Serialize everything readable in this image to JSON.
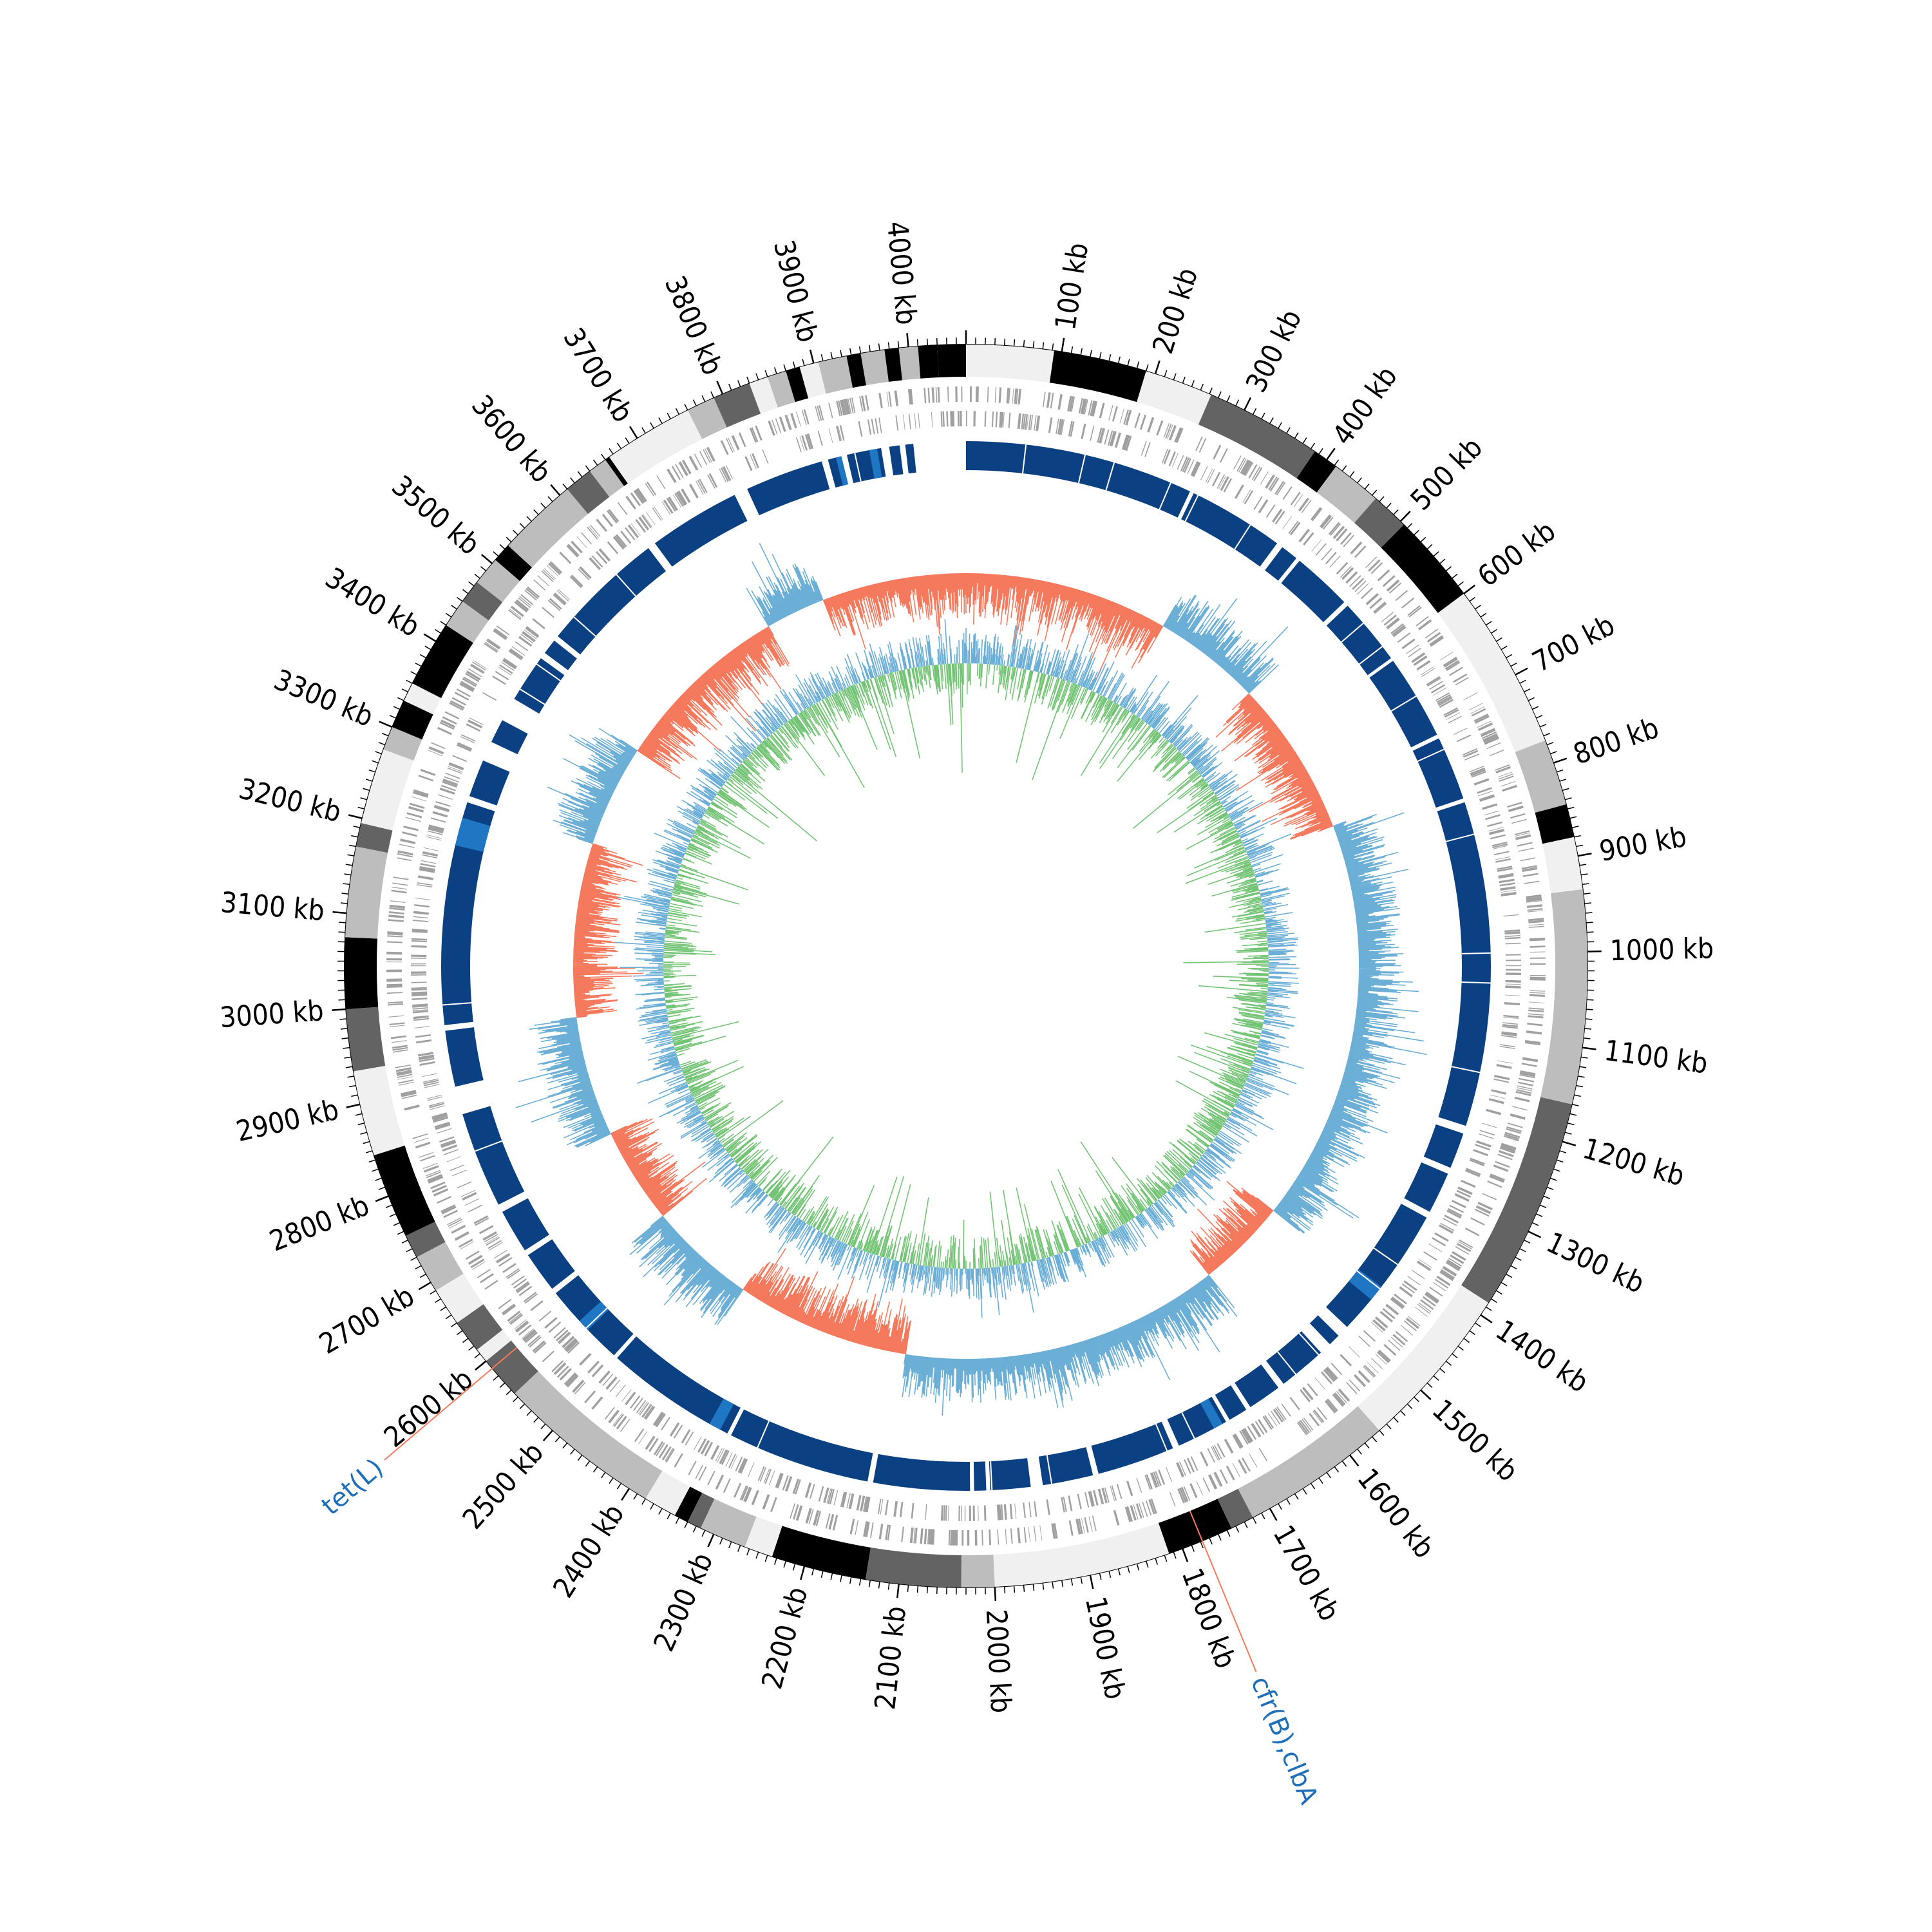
{
  "genome": {
    "total_kb": 4060,
    "major_tick_kb": 100,
    "minor_tick_kb": 10,
    "tick_unit": "kb",
    "tick_labels": [
      "100 kb",
      "200 kb",
      "300 kb",
      "400 kb",
      "500 kb",
      "600 kb",
      "700 kb",
      "800 kb",
      "900 kb",
      "1000 kb",
      "1100 kb",
      "1200 kb",
      "1300 kb",
      "1400 kb",
      "1500 kb",
      "1600 kb",
      "1700 kb",
      "1800 kb",
      "1900 kb",
      "2000 kb",
      "2100 kb",
      "2200 kb",
      "2300 kb",
      "2400 kb",
      "2500 kb",
      "2600 kb",
      "2700 kb",
      "2800 kb",
      "2900 kb",
      "3000 kb",
      "3100 kb",
      "3200 kb",
      "3300 kb",
      "3400 kb",
      "3500 kb",
      "3600 kb",
      "3700 kb",
      "3800 kb",
      "3900 kb",
      "4000 kb"
    ]
  },
  "colors": {
    "contig_shades": [
      "#f0f0f0",
      "#bdbdbd",
      "#636363",
      "#000000"
    ],
    "cds": "#a0a0a0",
    "homology_block": "#0b4182",
    "homology_highlight": "#1f77c4",
    "gc_content_up": "#6baed6",
    "gc_content_down": "#f4795d",
    "gc_skew_up": "#6baed6",
    "gc_skew_down": "#74c476",
    "label_line": "#f4795d",
    "gene_label": "#1f6fb8"
  },
  "contigs": [
    {
      "start": 0,
      "end": 92,
      "shade": 0
    },
    {
      "start": 92,
      "end": 190,
      "shade": 3
    },
    {
      "start": 190,
      "end": 262,
      "shade": 0
    },
    {
      "start": 262,
      "end": 385,
      "shade": 2
    },
    {
      "start": 385,
      "end": 412,
      "shade": 3
    },
    {
      "start": 412,
      "end": 465,
      "shade": 1
    },
    {
      "start": 465,
      "end": 505,
      "shade": 2
    },
    {
      "start": 505,
      "end": 600,
      "shade": 3
    },
    {
      "start": 600,
      "end": 775,
      "shade": 0
    },
    {
      "start": 775,
      "end": 845,
      "shade": 1
    },
    {
      "start": 845,
      "end": 880,
      "shade": 3
    },
    {
      "start": 880,
      "end": 935,
      "shade": 0
    },
    {
      "start": 935,
      "end": 1160,
      "shade": 1
    },
    {
      "start": 1160,
      "end": 1385,
      "shade": 2
    },
    {
      "start": 1385,
      "end": 1560,
      "shade": 0
    },
    {
      "start": 1560,
      "end": 1720,
      "shade": 1
    },
    {
      "start": 1720,
      "end": 1745,
      "shade": 2
    },
    {
      "start": 1745,
      "end": 1815,
      "shade": 3
    },
    {
      "start": 1815,
      "end": 2000,
      "shade": 0
    },
    {
      "start": 2000,
      "end": 2035,
      "shade": 1
    },
    {
      "start": 2035,
      "end": 2135,
      "shade": 2
    },
    {
      "start": 2135,
      "end": 2235,
      "shade": 3
    },
    {
      "start": 2235,
      "end": 2265,
      "shade": 0
    },
    {
      "start": 2265,
      "end": 2315,
      "shade": 1
    },
    {
      "start": 2315,
      "end": 2330,
      "shade": 2
    },
    {
      "start": 2330,
      "end": 2345,
      "shade": 3
    },
    {
      "start": 2345,
      "end": 2380,
      "shade": 0
    },
    {
      "start": 2380,
      "end": 2555,
      "shade": 1
    },
    {
      "start": 2555,
      "end": 2600,
      "shade": 2
    },
    {
      "start": 2600,
      "end": 2615,
      "shade": 0
    },
    {
      "start": 2615,
      "end": 2650,
      "shade": 2
    },
    {
      "start": 2650,
      "end": 2690,
      "shade": 0
    },
    {
      "start": 2690,
      "end": 2730,
      "shade": 1
    },
    {
      "start": 2730,
      "end": 2755,
      "shade": 2
    },
    {
      "start": 2755,
      "end": 2845,
      "shade": 3
    },
    {
      "start": 2845,
      "end": 2935,
      "shade": 0
    },
    {
      "start": 2935,
      "end": 3000,
      "shade": 2
    },
    {
      "start": 3000,
      "end": 3075,
      "shade": 3
    },
    {
      "start": 3075,
      "end": 3170,
      "shade": 1
    },
    {
      "start": 3170,
      "end": 3195,
      "shade": 2
    },
    {
      "start": 3195,
      "end": 3275,
      "shade": 0
    },
    {
      "start": 3275,
      "end": 3300,
      "shade": 1
    },
    {
      "start": 3300,
      "end": 3330,
      "shade": 3
    },
    {
      "start": 3330,
      "end": 3350,
      "shade": 0
    },
    {
      "start": 3350,
      "end": 3420,
      "shade": 3
    },
    {
      "start": 3420,
      "end": 3450,
      "shade": 1
    },
    {
      "start": 3450,
      "end": 3475,
      "shade": 2
    },
    {
      "start": 3475,
      "end": 3505,
      "shade": 1
    },
    {
      "start": 3505,
      "end": 3525,
      "shade": 3
    },
    {
      "start": 3525,
      "end": 3610,
      "shade": 1
    },
    {
      "start": 3610,
      "end": 3640,
      "shade": 2
    },
    {
      "start": 3640,
      "end": 3660,
      "shade": 1
    },
    {
      "start": 3660,
      "end": 3665,
      "shade": 3
    },
    {
      "start": 3665,
      "end": 3760,
      "shade": 0
    },
    {
      "start": 3760,
      "end": 3790,
      "shade": 1
    },
    {
      "start": 3790,
      "end": 3830,
      "shade": 2
    },
    {
      "start": 3830,
      "end": 3850,
      "shade": 0
    },
    {
      "start": 3850,
      "end": 3870,
      "shade": 1
    },
    {
      "start": 3870,
      "end": 3885,
      "shade": 3
    },
    {
      "start": 3885,
      "end": 3905,
      "shade": 0
    },
    {
      "start": 3905,
      "end": 3935,
      "shade": 1
    },
    {
      "start": 3935,
      "end": 3950,
      "shade": 3
    },
    {
      "start": 3950,
      "end": 3975,
      "shade": 1
    },
    {
      "start": 3975,
      "end": 3990,
      "shade": 3
    },
    {
      "start": 3990,
      "end": 4010,
      "shade": 1
    },
    {
      "start": 4010,
      "end": 4030,
      "shade": 3
    },
    {
      "start": 4030,
      "end": 4060,
      "shade": 3
    }
  ],
  "homology_blocks": [
    {
      "start": 0,
      "end": 285
    },
    {
      "start": 290,
      "end": 410
    },
    {
      "start": 418,
      "end": 440
    },
    {
      "start": 445,
      "end": 520
    },
    {
      "start": 526,
      "end": 610
    },
    {
      "start": 614,
      "end": 720
    },
    {
      "start": 725,
      "end": 805
    },
    {
      "start": 810,
      "end": 1215
    },
    {
      "start": 1225,
      "end": 1270
    },
    {
      "start": 1278,
      "end": 1330
    },
    {
      "start": 1338,
      "end": 1505
    },
    {
      "start": 1520,
      "end": 1535
    },
    {
      "start": 1550,
      "end": 1610
    },
    {
      "start": 1618,
      "end": 1660
    },
    {
      "start": 1666,
      "end": 1690
    },
    {
      "start": 1695,
      "end": 1760
    },
    {
      "start": 1768,
      "end": 1865
    },
    {
      "start": 1872,
      "end": 1935
    },
    {
      "start": 1950,
      "end": 2000
    },
    {
      "start": 2005,
      "end": 2020
    },
    {
      "start": 2025,
      "end": 2145
    },
    {
      "start": 2152,
      "end": 2330
    },
    {
      "start": 2335,
      "end": 2500
    },
    {
      "start": 2505,
      "end": 2610
    },
    {
      "start": 2617,
      "end": 2668
    },
    {
      "start": 2675,
      "end": 2730
    },
    {
      "start": 2740,
      "end": 2860
    },
    {
      "start": 2895,
      "end": 2965
    },
    {
      "start": 2972,
      "end": 3250
    },
    {
      "start": 3258,
      "end": 3305
    },
    {
      "start": 3330,
      "end": 3360
    },
    {
      "start": 3390,
      "end": 3450
    },
    {
      "start": 3458,
      "end": 3478
    },
    {
      "start": 3484,
      "end": 3640
    },
    {
      "start": 3650,
      "end": 3765
    },
    {
      "start": 3782,
      "end": 3880
    },
    {
      "start": 3888,
      "end": 3905
    },
    {
      "start": 3912,
      "end": 3955
    },
    {
      "start": 3965,
      "end": 3978
    },
    {
      "start": 3985,
      "end": 3995
    }
  ],
  "homology_highlights": [
    {
      "start": 1440,
      "end": 1460
    },
    {
      "start": 1700,
      "end": 1712
    },
    {
      "start": 2345,
      "end": 2360
    },
    {
      "start": 2550,
      "end": 2565
    },
    {
      "start": 3195,
      "end": 3230
    },
    {
      "start": 3898,
      "end": 3905
    },
    {
      "start": 3940,
      "end": 3950
    }
  ],
  "gc_content_segments": [
    {
      "start": 0,
      "end": 340,
      "sign": "down"
    },
    {
      "start": 340,
      "end": 520,
      "sign": "up"
    },
    {
      "start": 520,
      "end": 780,
      "sign": "down"
    },
    {
      "start": 780,
      "end": 880,
      "sign": "up"
    },
    {
      "start": 880,
      "end": 1150,
      "sign": "up"
    },
    {
      "start": 1150,
      "end": 1300,
      "sign": "up"
    },
    {
      "start": 1300,
      "end": 1450,
      "sign": "up"
    },
    {
      "start": 1450,
      "end": 1600,
      "sign": "down"
    },
    {
      "start": 1600,
      "end": 1880,
      "sign": "up"
    },
    {
      "start": 1880,
      "end": 2130,
      "sign": "up"
    },
    {
      "start": 2130,
      "end": 2420,
      "sign": "down"
    },
    {
      "start": 2420,
      "end": 2600,
      "sign": "up"
    },
    {
      "start": 2600,
      "end": 2760,
      "sign": "down"
    },
    {
      "start": 2760,
      "end": 2960,
      "sign": "up"
    },
    {
      "start": 2960,
      "end": 3250,
      "sign": "down"
    },
    {
      "start": 3250,
      "end": 3420,
      "sign": "up"
    },
    {
      "start": 3420,
      "end": 3720,
      "sign": "down"
    },
    {
      "start": 3720,
      "end": 3820,
      "sign": "up"
    },
    {
      "start": 3820,
      "end": 4060,
      "sign": "down"
    }
  ],
  "gene_labels": [
    {
      "text": "cfr(B),clbA",
      "position_kb": 1778
    },
    {
      "text": "tet(L)",
      "position_kb": 2590
    }
  ]
}
